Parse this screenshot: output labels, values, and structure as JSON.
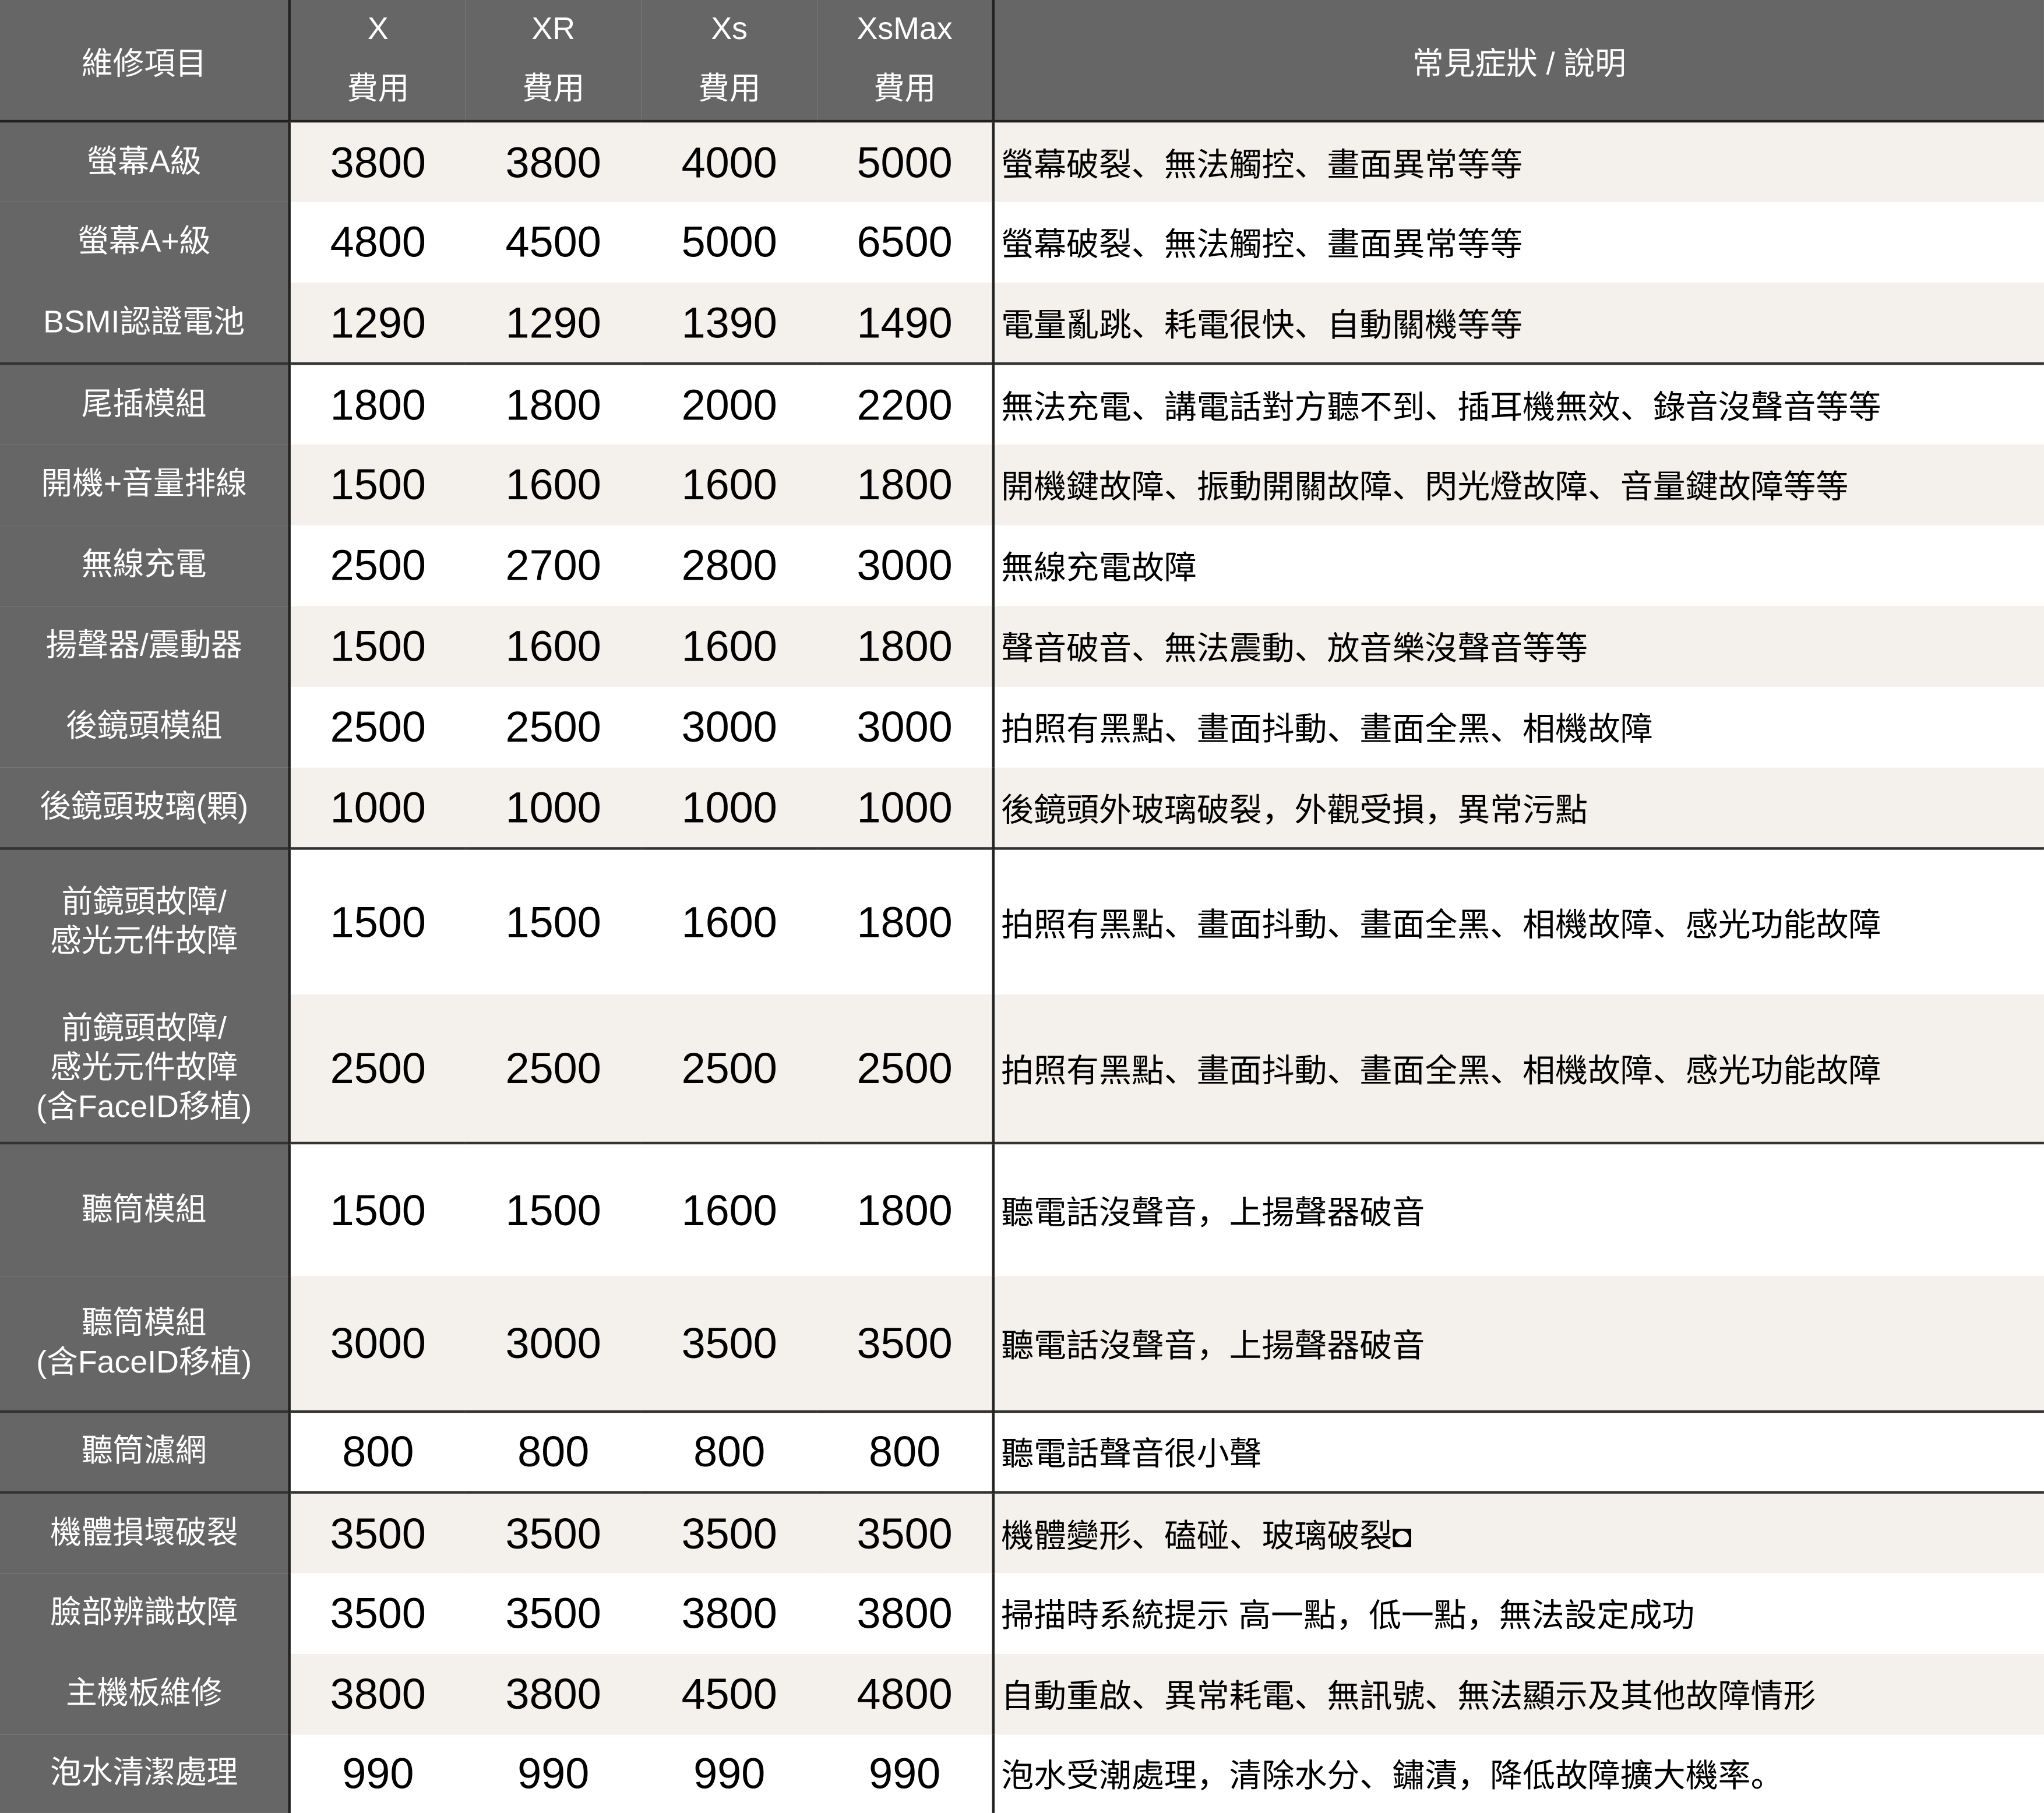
{
  "header": {
    "item": "維修項目",
    "models": [
      {
        "name": "X",
        "sub": "費用"
      },
      {
        "name": "XR",
        "sub": "費用"
      },
      {
        "name": "Xs",
        "sub": "費用"
      },
      {
        "name": "XsMax",
        "sub": "費用"
      }
    ],
    "description": "常見症狀 / 說明"
  },
  "colors": {
    "label_bg": "#666666",
    "stripe": "#f4f0eb",
    "border": "#222222"
  },
  "rows": [
    {
      "item": "螢幕A級",
      "prices": [
        "3800",
        "3800",
        "4000",
        "5000"
      ],
      "desc": "螢幕破裂、無法觸控、畫面異常等等"
    },
    {
      "item": "螢幕A+級",
      "prices": [
        "4800",
        "4500",
        "5000",
        "6500"
      ],
      "desc": "螢幕破裂、無法觸控、畫面異常等等"
    },
    {
      "item": "BSMI認證電池",
      "prices": [
        "1290",
        "1290",
        "1390",
        "1490"
      ],
      "desc": "電量亂跳、耗電很快、自動關機等等",
      "group_end": true
    },
    {
      "item": "尾插模組",
      "prices": [
        "1800",
        "1800",
        "2000",
        "2200"
      ],
      "desc": "無法充電、講電話對方聽不到、插耳機無效、錄音沒聲音等等"
    },
    {
      "item": "開機+音量排線",
      "prices": [
        "1500",
        "1600",
        "1600",
        "1800"
      ],
      "desc": "開機鍵故障、振動開關故障、閃光燈故障、音量鍵故障等等"
    },
    {
      "item": "無線充電",
      "prices": [
        "2500",
        "2700",
        "2800",
        "3000"
      ],
      "desc": "無線充電故障"
    },
    {
      "item": "揚聲器/震動器",
      "prices": [
        "1500",
        "1600",
        "1600",
        "1800"
      ],
      "desc": "聲音破音、無法震動、放音樂沒聲音等等"
    },
    {
      "item": "後鏡頭模組",
      "prices": [
        "2500",
        "2500",
        "3000",
        "3000"
      ],
      "desc": "拍照有黑點、畫面抖動、畫面全黑、相機故障"
    },
    {
      "item": "後鏡頭玻璃(顆)",
      "prices": [
        "1000",
        "1000",
        "1000",
        "1000"
      ],
      "desc": "後鏡頭外玻璃破裂，外觀受損，異常污點",
      "group_end": true
    },
    {
      "item": "前鏡頭故障/\n感光元件故障",
      "prices": [
        "1500",
        "1500",
        "1600",
        "1800"
      ],
      "desc": "拍照有黑點、畫面抖動、畫面全黑、相機故障、感光功能故障"
    },
    {
      "item": "前鏡頭故障/\n感光元件故障\n(含FaceID移植)",
      "prices": [
        "2500",
        "2500",
        "2500",
        "2500"
      ],
      "desc": "拍照有黑點、畫面抖動、畫面全黑、相機故障、感光功能故障",
      "group_end": true
    },
    {
      "item": "聽筒模組",
      "prices": [
        "1500",
        "1500",
        "1600",
        "1800"
      ],
      "desc": "聽電話沒聲音，上揚聲器破音"
    },
    {
      "item": "聽筒模組\n(含FaceID移植)",
      "prices": [
        "3000",
        "3000",
        "3500",
        "3500"
      ],
      "desc": "聽電話沒聲音，上揚聲器破音",
      "group_end": true
    },
    {
      "item": "聽筒濾網",
      "prices": [
        "800",
        "800",
        "800",
        "800"
      ],
      "desc": "聽電話聲音很小聲",
      "group_end": true
    },
    {
      "item": "機體損壞破裂",
      "prices": [
        "3500",
        "3500",
        "3500",
        "3500"
      ],
      "desc": "機體變形、磕碰、玻璃破裂◘"
    },
    {
      "item": "臉部辨識故障",
      "prices": [
        "3500",
        "3500",
        "3800",
        "3800"
      ],
      "desc": "掃描時系統提示 高一點，低一點，無法設定成功"
    },
    {
      "item": "主機板維修",
      "prices": [
        "3800",
        "3800",
        "4500",
        "4800"
      ],
      "desc": "自動重啟、異常耗電、無訊號、無法顯示及其他故障情形"
    },
    {
      "item": "泡水清潔處理",
      "prices": [
        "990",
        "990",
        "990",
        "990"
      ],
      "desc": "泡水受潮處理，清除水分、鏽漬，降低故障擴大機率。"
    }
  ]
}
